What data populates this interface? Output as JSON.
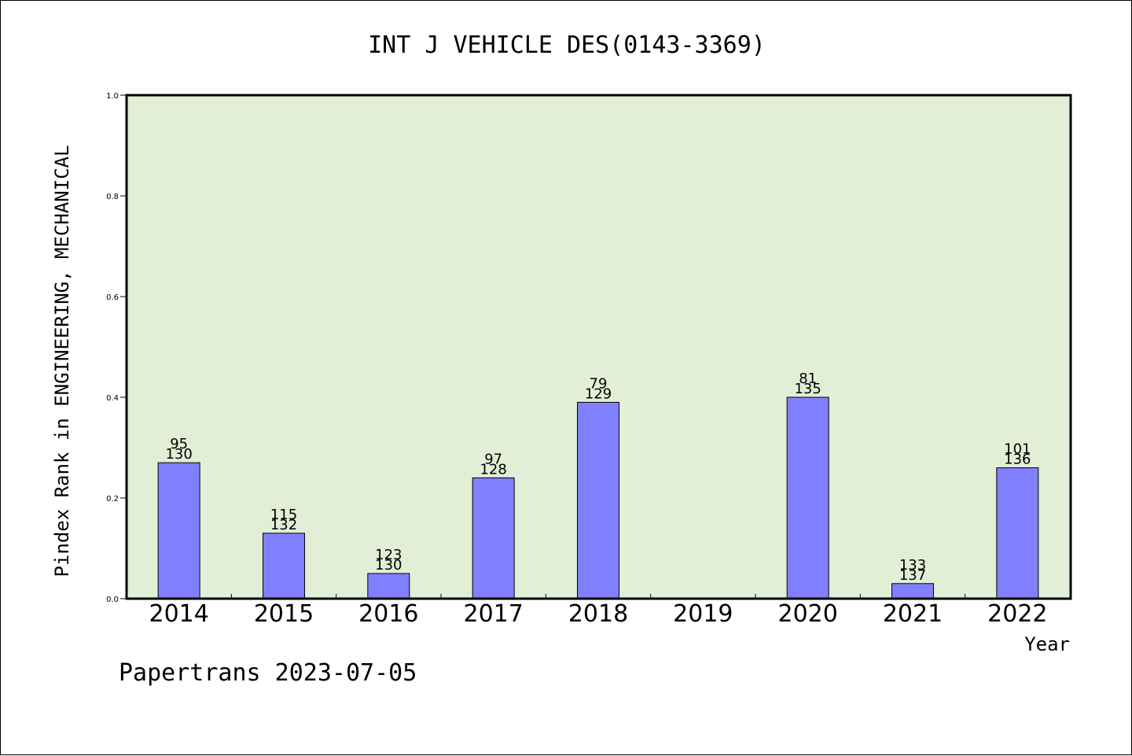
{
  "chart_data": {
    "type": "bar",
    "title": "INT J VEHICLE DES(0143-3369)",
    "xlabel": "Year",
    "ylabel": "Pindex Rank in ENGINEERING, MECHANICAL",
    "categories": [
      "2014",
      "2015",
      "2016",
      "2017",
      "2018",
      "2019",
      "2020",
      "2021",
      "2022"
    ],
    "values": [
      0.27,
      0.13,
      0.05,
      0.24,
      0.39,
      null,
      0.4,
      0.03,
      0.26
    ],
    "rank_labels": [
      "95",
      "115",
      "123",
      "97",
      "79",
      "",
      "81",
      "133",
      "101"
    ],
    "total_labels": [
      "130",
      "132",
      "130",
      "128",
      "129",
      "",
      "135",
      "137",
      "136"
    ],
    "ylim": [
      0,
      1.0
    ],
    "yticks": [
      "0.0",
      "0.2",
      "0.4",
      "0.6",
      "0.8",
      "1.0"
    ],
    "bar_color": "#8080ff",
    "plot_background": "#e2efd6",
    "grid": false,
    "legend": "none"
  },
  "footer": {
    "credit": "Papertrans 2023-07-05"
  }
}
